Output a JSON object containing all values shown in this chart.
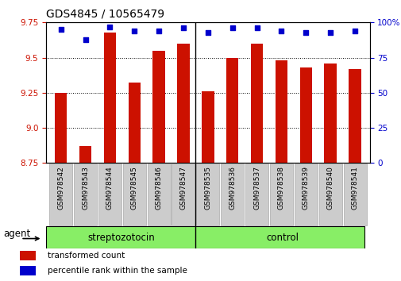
{
  "title": "GDS4845 / 10565479",
  "categories": [
    "GSM978542",
    "GSM978543",
    "GSM978544",
    "GSM978545",
    "GSM978546",
    "GSM978547",
    "GSM978535",
    "GSM978536",
    "GSM978537",
    "GSM978538",
    "GSM978539",
    "GSM978540",
    "GSM978541"
  ],
  "bar_values": [
    9.25,
    8.87,
    9.68,
    9.32,
    9.55,
    9.6,
    9.26,
    9.5,
    9.6,
    9.48,
    9.43,
    9.46,
    9.42
  ],
  "percentile_values": [
    95,
    88,
    97,
    94,
    94,
    96,
    93,
    96,
    96,
    94,
    93,
    93,
    94
  ],
  "bar_color": "#cc1100",
  "dot_color": "#0000cc",
  "ylim_left": [
    8.75,
    9.75
  ],
  "ylim_right": [
    0,
    100
  ],
  "yticks_left": [
    8.75,
    9.0,
    9.25,
    9.5,
    9.75
  ],
  "yticks_right": [
    0,
    25,
    50,
    75,
    100
  ],
  "groups": [
    {
      "label": "streptozotocin",
      "start": 0,
      "end": 6,
      "color": "#88ee66"
    },
    {
      "label": "control",
      "start": 6,
      "end": 13,
      "color": "#88ee66"
    }
  ],
  "group_separator": 6,
  "agent_label": "agent",
  "legend_bar_label": "transformed count",
  "legend_dot_label": "percentile rank within the sample",
  "bar_width": 0.5,
  "title_fontsize": 10,
  "tick_fontsize": 7.5,
  "label_fontsize": 8.5,
  "xtick_fontsize": 6.5
}
